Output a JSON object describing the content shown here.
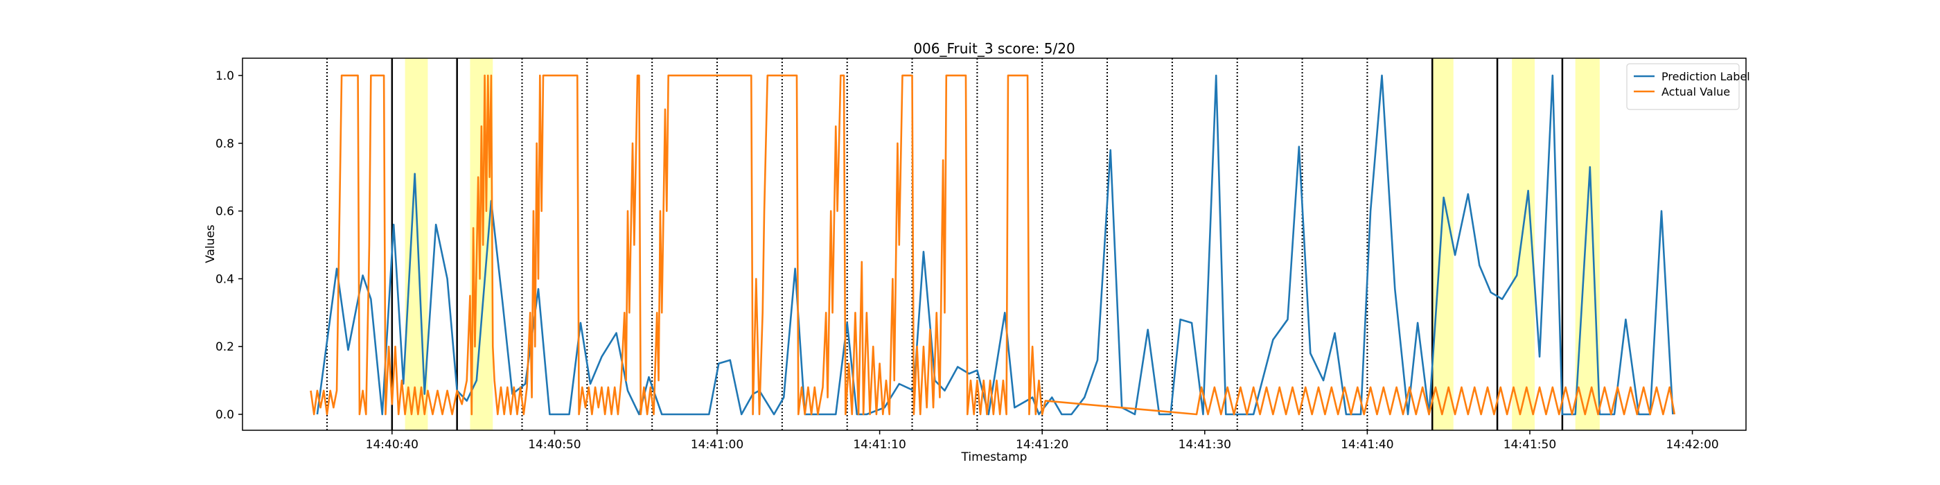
{
  "chart_data": {
    "type": "line",
    "title": "006_Fruit_3 score: 5/20",
    "xlabel": "Timestamp",
    "ylabel": "Values",
    "xlim": [
      "14:40:30.8",
      "14:42:03.3"
    ],
    "xticks": [
      "14:40:40",
      "14:40:50",
      "14:41:00",
      "14:41:10",
      "14:41:20",
      "14:41:30",
      "14:41:40",
      "14:41:50",
      "14:42:00"
    ],
    "ylim": [
      -0.047,
      1.051
    ],
    "yticks": [
      {
        "value": 0,
        "label": "0.0"
      },
      {
        "value": 0.2,
        "label": "0.2"
      },
      {
        "value": 0.4,
        "label": "0.4"
      },
      {
        "value": 0.6,
        "label": "0.6"
      },
      {
        "value": 0.8,
        "label": "0.8"
      },
      {
        "value": 1,
        "label": "1.0"
      }
    ],
    "legend": "upper right",
    "dotted_lines": [
      "14:40:36",
      "14:40:48",
      "14:40:52",
      "14:40:56",
      "14:41:00",
      "14:41:04",
      "14:41:08",
      "14:41:12",
      "14:41:16",
      "14:41:20",
      "14:41:24",
      "14:41:28",
      "14:41:32",
      "14:41:36",
      "14:41:40"
    ],
    "solid_lines": [
      "14:40:40",
      "14:40:44",
      "14:41:44",
      "14:41:48",
      "14:41:52"
    ],
    "highlight_spans": [
      [
        "14:40:40.8",
        "14:40:42.2"
      ],
      [
        "14:40:44.8",
        "14:40:46.2"
      ],
      [
        "14:41:44.0",
        "14:41:45.3"
      ],
      [
        "14:41:48.9",
        "14:41:50.3"
      ],
      [
        "14:41:52.8",
        "14:41:54.3"
      ]
    ],
    "highlight_color": "#ffffb0",
    "series": [
      {
        "name": "Prediction Label",
        "color": "#1f77b4",
        "x": [
          "14:40:35.4",
          "14:40:36.6",
          "14:40:37.3",
          "14:40:38.2",
          "14:40:38.7",
          "14:40:39.4",
          "14:40:40.1",
          "14:40:40.7",
          "14:40:41.4",
          "14:40:42.0",
          "14:40:42.7",
          "14:40:43.4",
          "14:40:44.0",
          "14:40:44.6",
          "14:40:45.2",
          "14:40:46.1",
          "14:40:46.8",
          "14:40:47.4",
          "14:40:48.2",
          "14:40:49.0",
          "14:40:49.7",
          "14:40:50.9",
          "14:40:51.6",
          "14:40:52.2",
          "14:40:52.9",
          "14:40:53.8",
          "14:40:54.5",
          "14:40:55.2",
          "14:40:55.8",
          "14:40:56.6",
          "14:40:59.5",
          "14:41:00.1",
          "14:41:00.8",
          "14:41:01.5",
          "14:41:02.2",
          "14:41:02.6",
          "14:41:03.5",
          "14:41:04.1",
          "14:41:04.8",
          "14:41:05.4",
          "14:41:06.1",
          "14:41:07.3",
          "14:41:08.0",
          "14:41:08.6",
          "14:41:09.2",
          "14:41:10.3",
          "14:41:11.2",
          "14:41:12.1",
          "14:41:12.7",
          "14:41:13.4",
          "14:41:14.0",
          "14:41:14.8",
          "14:41:15.5",
          "14:41:16.0",
          "14:41:16.7",
          "14:41:17.7",
          "14:41:18.3",
          "14:41:19.4",
          "14:41:19.8",
          "14:41:20.6",
          "14:41:21.2",
          "14:41:21.8",
          "14:41:22.6",
          "14:41:23.4",
          "14:41:24.2",
          "14:41:24.9",
          "14:41:25.7",
          "14:41:26.5",
          "14:41:27.2",
          "14:41:27.9",
          "14:41:28.5",
          "14:41:29.2",
          "14:41:29.9",
          "14:41:30.7",
          "14:41:31.3",
          "14:41:32.0",
          "14:41:33.0",
          "14:41:34.2",
          "14:41:35.1",
          "14:41:35.8",
          "14:41:36.5",
          "14:41:37.3",
          "14:41:38.0",
          "14:41:38.7",
          "14:41:39.6",
          "14:41:40.2",
          "14:41:40.9",
          "14:41:41.7",
          "14:41:42.5",
          "14:41:43.1",
          "14:41:43.8",
          "14:41:44.7",
          "14:41:45.4",
          "14:41:46.2",
          "14:41:46.9",
          "14:41:47.6",
          "14:41:48.3",
          "14:41:49.2",
          "14:41:49.9",
          "14:41:50.6",
          "14:41:51.4",
          "14:41:52.0",
          "14:41:52.8",
          "14:41:53.7",
          "14:41:54.3",
          "14:41:55.2",
          "14:41:55.9",
          "14:41:56.7",
          "14:41:57.4",
          "14:41:58.1",
          "14:41:58.8"
        ],
        "values": [
          0.0,
          0.43,
          0.19,
          0.41,
          0.34,
          0.0,
          0.56,
          0.09,
          0.71,
          0.06,
          0.56,
          0.4,
          0.07,
          0.04,
          0.1,
          0.63,
          0.33,
          0.06,
          0.09,
          0.37,
          0.0,
          0.0,
          0.27,
          0.09,
          0.17,
          0.24,
          0.07,
          0.0,
          0.11,
          0.0,
          0.0,
          0.15,
          0.16,
          0.0,
          0.06,
          0.07,
          0.0,
          0.05,
          0.43,
          0.0,
          0.0,
          0.0,
          0.27,
          0.0,
          0.0,
          0.02,
          0.09,
          0.07,
          0.48,
          0.1,
          0.07,
          0.14,
          0.12,
          0.13,
          0.0,
          0.3,
          0.02,
          0.05,
          0.0,
          0.05,
          0.0,
          0.0,
          0.05,
          0.16,
          0.78,
          0.02,
          0.0,
          0.25,
          0.0,
          0.0,
          0.28,
          0.27,
          0.0,
          1.0,
          0.0,
          0.0,
          0.0,
          0.22,
          0.28,
          0.79,
          0.18,
          0.1,
          0.24,
          0.0,
          0.0,
          0.6,
          1.0,
          0.37,
          0.0,
          0.27,
          0.0,
          0.64,
          0.47,
          0.65,
          0.44,
          0.36,
          0.34,
          0.41,
          0.66,
          0.17,
          1.0,
          0.0,
          0.0,
          0.73,
          0.0,
          0.0,
          0.28,
          0.0,
          0.0,
          0.6,
          0.0
        ]
      },
      {
        "name": "Actual Value",
        "color": "#ff7f0e",
        "x": [
          "14:40:35.0",
          "14:40:35.2",
          "14:40:35.4",
          "14:40:35.6",
          "14:40:35.8",
          "14:40:36.0",
          "14:40:36.2",
          "14:40:36.4",
          "14:40:36.6",
          "14:40:36.9",
          "14:40:37.9",
          "14:40:38.0",
          "14:40:38.2",
          "14:40:38.4",
          "14:40:38.6",
          "14:40:38.7",
          "14:40:39.5",
          "14:40:39.6",
          "14:40:39.8",
          "14:40:40.0",
          "14:40:40.2",
          "14:40:40.4",
          "14:40:40.6",
          "14:40:40.8",
          "14:40:41.0",
          "14:40:41.2",
          "14:40:41.4",
          "14:40:41.6",
          "14:40:41.8",
          "14:40:42.0",
          "14:40:42.2",
          "14:40:42.5",
          "14:40:42.8",
          "14:40:43.1",
          "14:40:43.4",
          "14:40:43.7",
          "14:40:44.0",
          "14:40:44.3",
          "14:40:44.6",
          "14:40:44.8",
          "14:40:44.9",
          "14:40:45.0",
          "14:40:45.1",
          "14:40:45.3",
          "14:40:45.4",
          "14:40:45.5",
          "14:40:45.6",
          "14:40:45.7",
          "14:40:45.8",
          "14:40:45.9",
          "14:40:46.0",
          "14:40:46.1",
          "14:40:46.2",
          "14:40:46.3",
          "14:40:46.5",
          "14:40:46.7",
          "14:40:46.9",
          "14:40:47.1",
          "14:40:47.3",
          "14:40:47.5",
          "14:40:47.7",
          "14:40:47.9",
          "14:40:48.1",
          "14:40:48.3",
          "14:40:48.5",
          "14:40:48.6",
          "14:40:48.7",
          "14:40:48.8",
          "14:40:48.9",
          "14:40:49.0",
          "14:40:49.1",
          "14:40:49.2",
          "14:40:49.3",
          "14:40:51.4",
          "14:40:51.5",
          "14:40:51.7",
          "14:40:51.9",
          "14:40:52.1",
          "14:40:52.3",
          "14:40:52.5",
          "14:40:52.7",
          "14:40:52.9",
          "14:40:53.1",
          "14:40:53.3",
          "14:40:53.5",
          "14:40:53.7",
          "14:40:53.9",
          "14:40:54.1",
          "14:40:54.3",
          "14:40:54.4",
          "14:40:54.5",
          "14:40:54.6",
          "14:40:54.8",
          "14:40:54.9",
          "14:40:55.1",
          "14:40:55.2",
          "14:40:55.3",
          "14:40:55.5",
          "14:40:55.7",
          "14:40:55.9",
          "14:40:56.1",
          "14:40:56.3",
          "14:40:56.4",
          "14:40:56.5",
          "14:40:56.6",
          "14:40:56.8",
          "14:40:56.9",
          "14:40:57.0",
          "14:41:02.1",
          "14:41:02.2",
          "14:41:02.4",
          "14:41:02.6",
          "14:41:02.8",
          "14:41:02.9",
          "14:41:03.1",
          "14:41:04.9",
          "14:41:05.0",
          "14:41:05.2",
          "14:41:05.4",
          "14:41:05.6",
          "14:41:05.8",
          "14:41:06.0",
          "14:41:06.2",
          "14:41:06.5",
          "14:41:06.7",
          "14:41:06.8",
          "14:41:07.0",
          "14:41:07.1",
          "14:41:07.3",
          "14:41:07.4",
          "14:41:07.6",
          "14:41:07.8",
          "14:41:07.9",
          "14:41:08.1",
          "14:41:08.3",
          "14:41:08.5",
          "14:41:08.7",
          "14:41:08.9",
          "14:41:09.0",
          "14:41:09.2",
          "14:41:09.4",
          "14:41:09.6",
          "14:41:09.8",
          "14:41:10.0",
          "14:41:10.2",
          "14:41:10.4",
          "14:41:10.6",
          "14:41:10.8",
          "14:41:10.9",
          "14:41:11.1",
          "14:41:11.2",
          "14:41:11.4",
          "14:41:12.0",
          "14:41:12.1",
          "14:41:12.3",
          "14:41:12.5",
          "14:41:12.7",
          "14:41:12.9",
          "14:41:13.1",
          "14:41:13.3",
          "14:41:13.5",
          "14:41:13.7",
          "14:41:13.9",
          "14:41:14.0",
          "14:41:14.1",
          "14:41:15.3",
          "14:41:15.4",
          "14:41:15.6",
          "14:41:15.8",
          "14:41:16.0",
          "14:41:16.2",
          "14:41:16.4",
          "14:41:16.6",
          "14:41:16.8",
          "14:41:17.0",
          "14:41:17.2",
          "14:41:17.4",
          "14:41:17.6",
          "14:41:17.8",
          "14:41:17.9",
          "14:41:19.1",
          "14:41:19.2",
          "14:41:19.4",
          "14:41:19.6",
          "14:41:19.8",
          "14:41:20.0",
          "14:41:20.2",
          "14:41:29.5",
          "14:41:29.8",
          "14:41:30.2",
          "14:41:30.6",
          "14:41:31.0",
          "14:41:31.4",
          "14:41:31.8",
          "14:41:32.2",
          "14:41:32.6",
          "14:41:33.0",
          "14:41:33.4",
          "14:41:33.8",
          "14:41:34.2",
          "14:41:34.6",
          "14:41:35.0",
          "14:41:35.4",
          "14:41:35.8",
          "14:41:36.2",
          "14:41:36.6",
          "14:41:37.0",
          "14:41:37.4",
          "14:41:37.8",
          "14:41:38.2",
          "14:41:38.6",
          "14:41:39.0",
          "14:41:39.4",
          "14:41:39.8",
          "14:41:40.2",
          "14:41:40.6",
          "14:41:41.0",
          "14:41:41.4",
          "14:41:41.8",
          "14:41:42.2",
          "14:41:42.6",
          "14:41:43.0",
          "14:41:43.4",
          "14:41:43.8",
          "14:41:44.2",
          "14:41:44.6",
          "14:41:45.0",
          "14:41:45.4",
          "14:41:45.8",
          "14:41:46.2",
          "14:41:46.6",
          "14:41:47.0",
          "14:41:47.4",
          "14:41:47.8",
          "14:41:48.2",
          "14:41:48.6",
          "14:41:49.0",
          "14:41:49.4",
          "14:41:49.8",
          "14:41:50.2",
          "14:41:50.6",
          "14:41:51.0",
          "14:41:51.4",
          "14:41:51.8",
          "14:41:52.2",
          "14:41:52.6",
          "14:41:53.0",
          "14:41:53.4",
          "14:41:53.8",
          "14:41:54.2",
          "14:41:54.6",
          "14:41:55.0",
          "14:41:55.4",
          "14:41:55.8",
          "14:41:56.2",
          "14:41:56.6",
          "14:41:57.0",
          "14:41:57.4",
          "14:41:57.8",
          "14:41:58.2",
          "14:41:58.6",
          "14:41:58.9"
        ],
        "values": [
          0.07,
          0.0,
          0.07,
          0.02,
          0.07,
          0.0,
          0.07,
          0.02,
          0.07,
          1.0,
          1.0,
          0.0,
          0.07,
          0.0,
          0.5,
          1.0,
          1.0,
          0.0,
          0.2,
          0.03,
          0.2,
          0.0,
          0.1,
          0.0,
          0.08,
          0.0,
          0.08,
          0.0,
          0.08,
          0.0,
          0.07,
          0.0,
          0.07,
          0.0,
          0.07,
          0.0,
          0.07,
          0.03,
          0.1,
          0.35,
          0.0,
          0.55,
          0.2,
          0.7,
          0.4,
          0.85,
          0.5,
          1.0,
          0.6,
          1.0,
          0.7,
          1.0,
          0.2,
          0.1,
          0.0,
          0.08,
          0.0,
          0.08,
          0.0,
          0.08,
          0.0,
          0.08,
          0.0,
          0.08,
          0.3,
          0.05,
          0.6,
          0.2,
          0.8,
          0.4,
          1.0,
          0.6,
          1.0,
          1.0,
          0.0,
          0.08,
          0.02,
          0.08,
          0.0,
          0.08,
          0.02,
          0.08,
          0.0,
          0.08,
          0.0,
          0.08,
          0.0,
          0.1,
          0.3,
          0.1,
          0.6,
          0.3,
          0.8,
          0.5,
          1.0,
          1.0,
          0.0,
          0.08,
          0.0,
          0.08,
          0.0,
          0.3,
          0.1,
          0.6,
          0.3,
          0.9,
          0.6,
          1.0,
          1.0,
          0.0,
          0.4,
          0.0,
          0.3,
          0.6,
          1.0,
          1.0,
          0.0,
          0.08,
          0.0,
          0.08,
          0.0,
          0.08,
          0.0,
          0.08,
          0.3,
          0.05,
          0.6,
          0.3,
          0.85,
          0.6,
          1.0,
          1.0,
          0.0,
          0.15,
          0.0,
          0.3,
          0.0,
          0.45,
          0.0,
          0.3,
          0.0,
          0.2,
          0.0,
          0.15,
          0.0,
          0.1,
          0.0,
          0.4,
          0.1,
          0.8,
          0.5,
          1.0,
          1.0,
          0.0,
          0.2,
          0.0,
          0.2,
          0.02,
          0.25,
          0.02,
          0.3,
          0.05,
          0.75,
          0.3,
          1.0,
          1.0,
          0.0,
          0.1,
          0.0,
          0.1,
          0.0,
          0.1,
          0.0,
          0.1,
          0.0,
          0.1,
          0.0,
          0.1,
          0.0,
          1.0,
          1.0,
          0.0,
          0.2,
          0.0,
          0.1,
          0.0,
          0.04,
          0.0,
          0.08,
          0.0,
          0.08,
          0.0,
          0.08,
          0.0,
          0.08,
          0.0,
          0.08,
          0.0,
          0.08,
          0.0,
          0.08,
          0.0,
          0.08,
          0.0,
          0.08,
          0.0,
          0.08,
          0.0,
          0.08,
          0.0,
          0.08,
          0.0,
          0.08,
          0.0,
          0.08,
          0.0,
          0.08,
          0.0,
          0.08,
          0.0,
          0.08,
          0.0,
          0.08,
          0.0,
          0.08,
          0.0,
          0.08,
          0.0,
          0.08,
          0.0,
          0.08,
          0.0,
          0.08,
          0.0,
          0.08,
          0.0,
          0.08,
          0.0,
          0.08,
          0.0,
          0.08,
          0.0,
          0.08,
          0.0,
          0.08,
          0.0,
          0.08,
          0.0,
          0.08,
          0.0,
          0.08,
          0.0,
          0.08,
          0.0,
          0.08,
          0.0,
          0.08,
          0.0,
          0.08,
          0.0,
          0.08,
          0.0
        ]
      }
    ]
  }
}
